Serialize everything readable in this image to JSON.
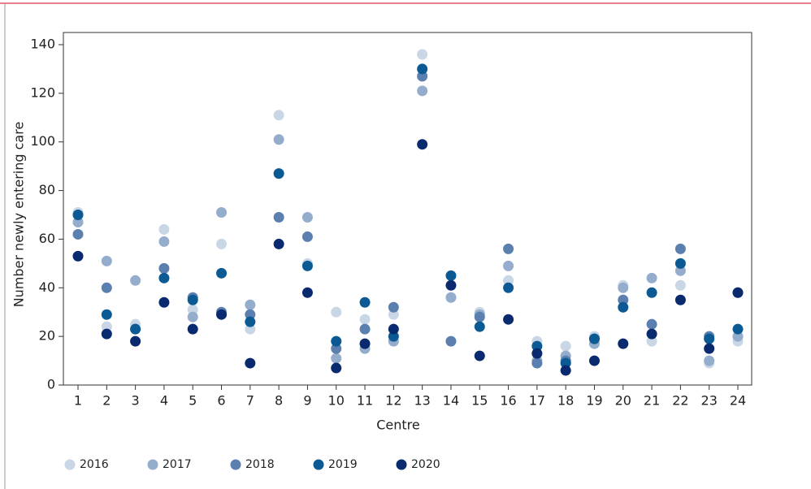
{
  "chart_data": {
    "type": "scatter",
    "y_label": "Number newly entering care",
    "x_label": "Centre",
    "categories": [
      "1",
      "2",
      "3",
      "4",
      "5",
      "6",
      "7",
      "8",
      "9",
      "10",
      "11",
      "12",
      "13",
      "14",
      "15",
      "16",
      "17",
      "18",
      "19",
      "20",
      "21",
      "22",
      "23",
      "24"
    ],
    "series": [
      {
        "name": "2016",
        "color": "#c9d6e6",
        "values": [
          71,
          24,
          25,
          64,
          31,
          58,
          23,
          111,
          50,
          30,
          27,
          29,
          136,
          36,
          30,
          43,
          18,
          16,
          20,
          41,
          18,
          41,
          9,
          18
        ]
      },
      {
        "name": "2017",
        "color": "#95adcc",
        "values": [
          67,
          51,
          43,
          59,
          28,
          71,
          33,
          101,
          69,
          11,
          15,
          18,
          121,
          36,
          29,
          49,
          10,
          12,
          17,
          40,
          44,
          47,
          10,
          20
        ]
      },
      {
        "name": "2018",
        "color": "#5b7fae",
        "values": [
          62,
          40,
          23,
          48,
          36,
          30,
          29,
          69,
          61,
          15,
          23,
          32,
          127,
          18,
          28,
          56,
          9,
          10,
          19,
          35,
          25,
          56,
          20,
          38
        ]
      },
      {
        "name": "2019",
        "color": "#0b5a94",
        "values": [
          70,
          29,
          23,
          44,
          35,
          46,
          26,
          87,
          49,
          18,
          34,
          20,
          130,
          45,
          24,
          40,
          16,
          9,
          19,
          32,
          38,
          50,
          19,
          23
        ]
      },
      {
        "name": "2020",
        "color": "#0a2a6f",
        "values": [
          53,
          21,
          18,
          34,
          23,
          29,
          9,
          58,
          38,
          7,
          17,
          23,
          99,
          41,
          12,
          27,
          13,
          6,
          10,
          17,
          21,
          35,
          15,
          38
        ]
      }
    ],
    "ylim": [
      0,
      140
    ],
    "yticks": [
      0,
      20,
      40,
      60,
      80,
      100,
      120,
      140
    ]
  }
}
